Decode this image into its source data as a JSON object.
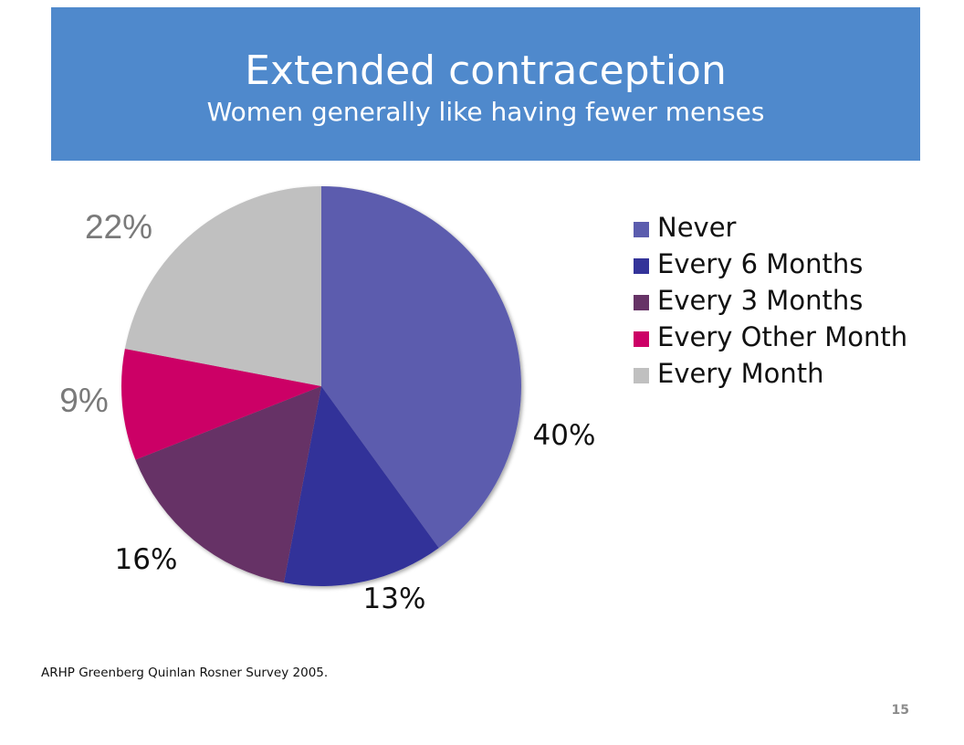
{
  "header": {
    "title": "Extended contraception",
    "subtitle": "Women generally like having fewer menses"
  },
  "chart_data": {
    "type": "pie",
    "title": "",
    "categories": [
      "Never",
      "Every 6 Months",
      "Every 3 Months",
      "Every Other Month",
      "Every Month"
    ],
    "values": [
      40,
      13,
      16,
      9,
      22
    ],
    "data_labels": [
      "40%",
      "13%",
      "16%",
      "9%",
      "22%"
    ],
    "colors": [
      "#5b5cae",
      "#333399",
      "#663366",
      "#cc0066",
      "#c0c0c0"
    ],
    "legend_position": "right",
    "start": "12 o'clock, clockwise"
  },
  "legend": {
    "items": [
      {
        "label": "Never",
        "color": "#5b5cae"
      },
      {
        "label": "Every 6 Months",
        "color": "#333399"
      },
      {
        "label": "Every 3 Months",
        "color": "#663366"
      },
      {
        "label": "Every Other Month",
        "color": "#cc0066"
      },
      {
        "label": "Every Month",
        "color": "#c0c0c0"
      }
    ]
  },
  "footer": {
    "source": "ARHP Greenberg Quinlan Rosner Survey 2005.",
    "page_number": "15"
  }
}
